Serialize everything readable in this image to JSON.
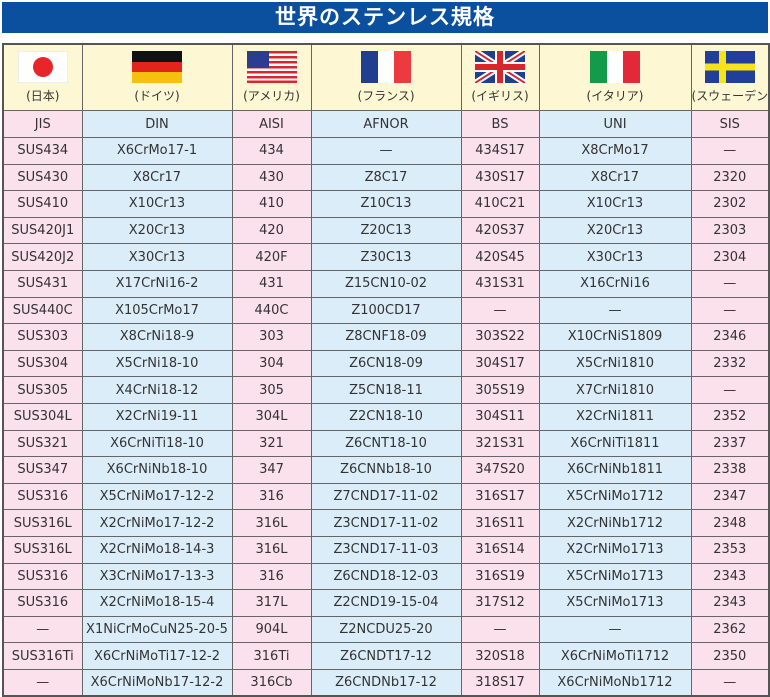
{
  "title": "世界のステンレス規格",
  "countries": [
    {
      "name": "(日本)",
      "flag": "japan-flag-icon"
    },
    {
      "name": "(ドイツ)",
      "flag": "germany-flag-icon"
    },
    {
      "name": "(アメリカ)",
      "flag": "usa-flag-icon"
    },
    {
      "name": "(フランス)",
      "flag": "france-flag-icon"
    },
    {
      "name": "(イギリス)",
      "flag": "uk-flag-icon"
    },
    {
      "name": "(イタリア)",
      "flag": "italy-flag-icon"
    },
    {
      "name": "(スウェーデン)",
      "flag": "sweden-flag-icon"
    }
  ],
  "headers": [
    "JIS",
    "DIN",
    "AISI",
    "AFNOR",
    "BS",
    "UNI",
    "SIS"
  ],
  "rows": [
    [
      "SUS434",
      "X6CrMo17-1",
      "434",
      "—",
      "434S17",
      "X8CrMo17",
      "—"
    ],
    [
      "SUS430",
      "X8Cr17",
      "430",
      "Z8C17",
      "430S17",
      "X8Cr17",
      "2320"
    ],
    [
      "SUS410",
      "X10Cr13",
      "410",
      "Z10C13",
      "410C21",
      "X10Cr13",
      "2302"
    ],
    [
      "SUS420J1",
      "X20Cr13",
      "420",
      "Z20C13",
      "420S37",
      "X20Cr13",
      "2303"
    ],
    [
      "SUS420J2",
      "X30Cr13",
      "420F",
      "Z30C13",
      "420S45",
      "X30Cr13",
      "2304"
    ],
    [
      "SUS431",
      "X17CrNi16-2",
      "431",
      "Z15CN10-02",
      "431S31",
      "X16CrNi16",
      "—"
    ],
    [
      "SUS440C",
      "X105CrMo17",
      "440C",
      "Z100CD17",
      "—",
      "—",
      "—"
    ],
    [
      "SUS303",
      "X8CrNi18-9",
      "303",
      "Z8CNF18-09",
      "303S22",
      "X10CrNiS1809",
      "2346"
    ],
    [
      "SUS304",
      "X5CrNi18-10",
      "304",
      "Z6CN18-09",
      "304S17",
      "X5CrNi1810",
      "2332"
    ],
    [
      "SUS305",
      "X4CrNi18-12",
      "305",
      "Z5CN18-11",
      "305S19",
      "X7CrNi1810",
      "—"
    ],
    [
      "SUS304L",
      "X2CrNi19-11",
      "304L",
      "Z2CN18-10",
      "304S11",
      "X2CrNi1811",
      "2352"
    ],
    [
      "SUS321",
      "X6CrNiTi18-10",
      "321",
      "Z6CNT18-10",
      "321S31",
      "X6CrNiTi1811",
      "2337"
    ],
    [
      "SUS347",
      "X6CrNiNb18-10",
      "347",
      "Z6CNNb18-10",
      "347S20",
      "X6CrNiNb1811",
      "2338"
    ],
    [
      "SUS316",
      "X5CrNiMo17-12-2",
      "316",
      "Z7CND17-11-02",
      "316S17",
      "X5CrNiMo1712",
      "2347"
    ],
    [
      "SUS316L",
      "X2CrNiMo17-12-2",
      "316L",
      "Z3CND17-11-02",
      "316S11",
      "X2CrNiNb1712",
      "2348"
    ],
    [
      "SUS316L",
      "X2CrNiMo18-14-3",
      "316L",
      "Z3CND17-11-03",
      "316S14",
      "X2CrNiMo1713",
      "2353"
    ],
    [
      "SUS316",
      "X3CrNiMo17-13-3",
      "316",
      "Z6CND18-12-03",
      "316S19",
      "X5CrNiMo1713",
      "2343"
    ],
    [
      "SUS316",
      "X2CrNiMo18-15-4",
      "317L",
      "Z2CND19-15-04",
      "317S12",
      "X5CrNiMo1713",
      "2343"
    ],
    [
      "—",
      "X1NiCrMoCuN25-20-5",
      "904L",
      "Z2NCDU25-20",
      "—",
      "—",
      "2362"
    ],
    [
      "SUS316Ti",
      "X6CrNiMoTi17-12-2",
      "316Ti",
      "Z6CNDT17-12",
      "320S18",
      "X6CrNiMoTi1712",
      "2350"
    ],
    [
      "—",
      "X6CrNiMoNb17-12-2",
      "316Cb",
      "Z6CNDNb17-12",
      "318S17",
      "X6CrNiMoNb1712",
      "—"
    ]
  ],
  "colors": {
    "title_bar": "#0b4f9f",
    "flag_row": "#fdf7d4",
    "pink_column": "#fbe1ec",
    "blue_column": "#dcedfa"
  }
}
